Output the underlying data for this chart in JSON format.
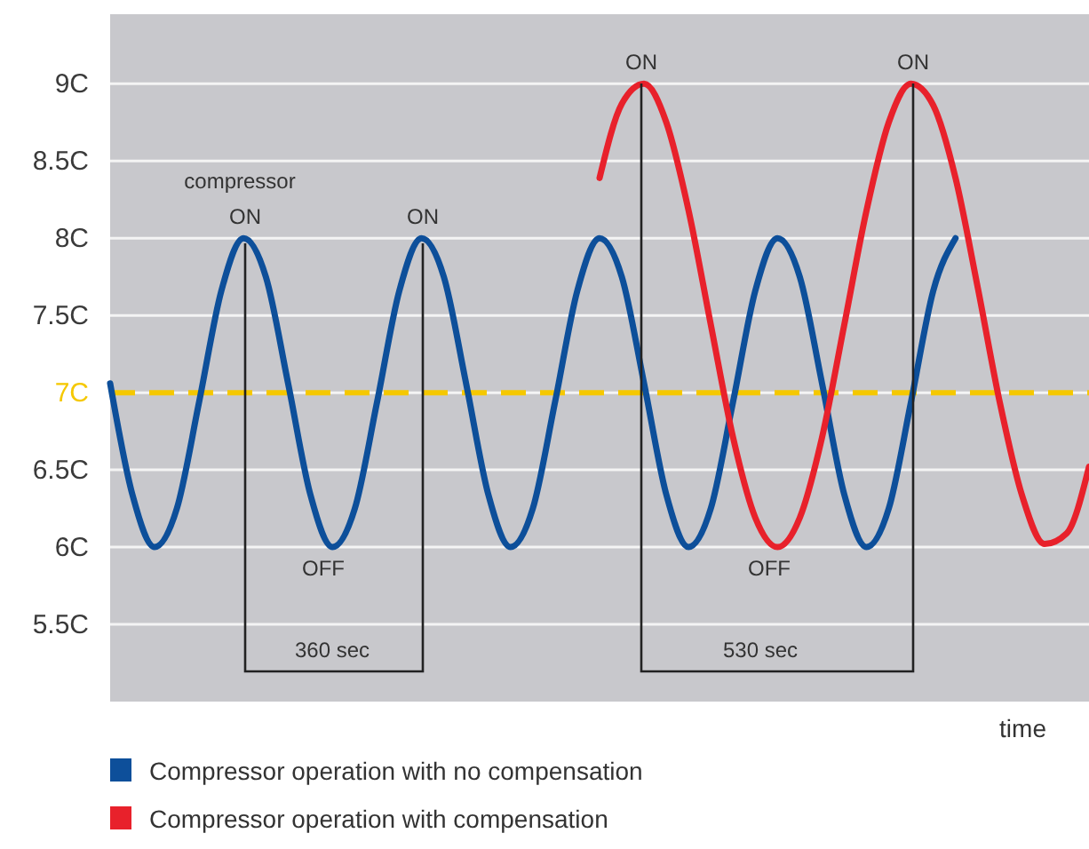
{
  "chart_data": {
    "type": "line",
    "xlabel": "time",
    "categories": [
      null,
      null,
      null,
      null,
      null,
      null,
      null,
      null,
      null,
      null,
      null,
      null,
      null,
      null,
      null,
      null,
      null,
      null,
      null,
      null,
      null,
      null,
      null,
      null,
      null,
      null,
      null,
      null,
      null,
      null,
      null,
      null,
      null,
      null,
      null,
      null,
      null,
      null,
      null,
      null,
      null,
      null,
      null,
      null,
      null
    ],
    "series": [
      {
        "name": "Compressor operation with no compensation",
        "color": "#0d4f9a",
        "values": [
          7.06,
          6.34,
          6.0,
          6.25,
          6.94,
          7.66,
          8.0,
          7.75,
          7.06,
          6.34,
          6.0,
          6.25,
          6.94,
          7.66,
          8.0,
          7.75,
          7.06,
          6.34,
          6.0,
          6.25,
          6.94,
          7.66,
          8.0,
          7.75,
          7.06,
          6.34,
          6.0,
          6.25,
          6.94,
          7.66,
          8.0,
          7.75,
          7.06,
          6.34,
          6.0,
          6.25,
          6.94,
          7.66,
          8.0,
          null,
          null,
          null,
          null,
          null,
          null
        ]
      },
      {
        "name": "Compressor operation with compensation",
        "color": "#e8212b",
        "values": [
          null,
          null,
          null,
          null,
          null,
          null,
          null,
          null,
          null,
          null,
          null,
          null,
          null,
          null,
          null,
          null,
          null,
          null,
          null,
          null,
          null,
          null,
          8.39,
          8.87,
          9.0,
          8.75,
          8.18,
          7.44,
          6.71,
          6.19,
          6.0,
          6.19,
          6.71,
          7.44,
          8.18,
          8.75,
          9.0,
          8.86,
          8.39,
          7.68,
          6.93,
          6.33,
          6.02,
          6.09,
          6.52
        ]
      }
    ],
    "ylim": [
      5.0,
      9.45
    ],
    "yticks": [
      {
        "value": 5.5,
        "label": "5.5C"
      },
      {
        "value": 6,
        "label": "6C"
      },
      {
        "value": 6.5,
        "label": "6.5C"
      },
      {
        "value": 7,
        "label": "7C"
      },
      {
        "value": 7.5,
        "label": "7.5C"
      },
      {
        "value": 8,
        "label": "8C"
      },
      {
        "value": 8.5,
        "label": "8.5C"
      },
      {
        "value": 9,
        "label": "9C"
      }
    ],
    "ref_lines": [
      {
        "axis": "y",
        "value": 7,
        "color": "#f5c800",
        "line_style": "dashed"
      }
    ],
    "annotations": [
      "compressor",
      "ON",
      "ON",
      "ON",
      "ON",
      "OFF",
      "OFF",
      "360 sec",
      "530 sec"
    ],
    "grid": "y",
    "legend": "bottom",
    "marker": "none",
    "line_style": "solid",
    "tick_labels": "y"
  }
}
